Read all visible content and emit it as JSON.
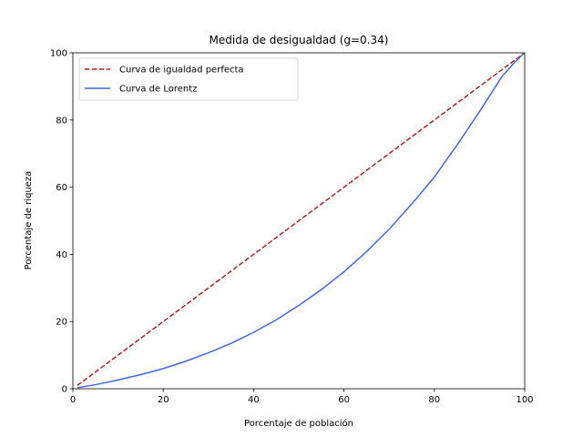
{
  "chart_data": {
    "type": "line",
    "title": "Medida de desigualdad (g=0.34)",
    "xlabel": "Porcentaje de población",
    "ylabel": "Porcentaje de riqueza",
    "xlim": [
      0,
      100
    ],
    "ylim": [
      0,
      100
    ],
    "xticks": [
      0,
      20,
      40,
      60,
      80,
      100
    ],
    "yticks": [
      0,
      20,
      40,
      60,
      80,
      100
    ],
    "grid": false,
    "legend_position": "top-left",
    "series": [
      {
        "name": "Curva de igualdad perfecta",
        "color": "#b22222",
        "style": "dashed",
        "x": [
          1,
          100
        ],
        "y": [
          1,
          100
        ]
      },
      {
        "name": "Curva de Lorentz",
        "color": "#4169e1",
        "style": "solid",
        "x": [
          1,
          5,
          10,
          15,
          20,
          25,
          30,
          35,
          40,
          45,
          50,
          55,
          60,
          65,
          70,
          75,
          80,
          85,
          90,
          95,
          98,
          100
        ],
        "y": [
          0.3,
          1.2,
          2.6,
          4.2,
          6.0,
          8.2,
          10.7,
          13.5,
          16.8,
          20.5,
          24.8,
          29.5,
          34.8,
          40.8,
          47.5,
          55.0,
          63.0,
          72.5,
          82.5,
          93.0,
          97.5,
          100
        ]
      }
    ]
  }
}
